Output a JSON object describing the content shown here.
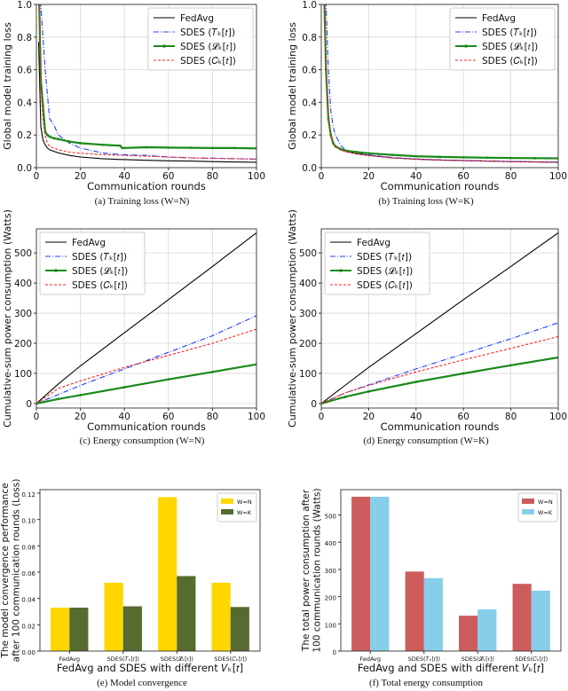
{
  "chart_data": [
    {
      "type": "line",
      "caption": "(a) Training loss (W=N)",
      "xlabel": "Communication rounds",
      "ylabel": "Global model training loss",
      "xlim": [
        0,
        100
      ],
      "ylim": [
        0,
        1.0
      ],
      "xticks": [
        0,
        20,
        40,
        60,
        80,
        100
      ],
      "yticks": [
        0.0,
        0.2,
        0.4,
        0.6,
        0.8,
        1.0
      ],
      "ytick_labels": [
        "0.0",
        "0.2",
        "0.4",
        "0.6",
        "0.8",
        "1.0"
      ],
      "grid": true,
      "legend": "top-right",
      "x": [
        1,
        2,
        3,
        4,
        5,
        6,
        8,
        10,
        15,
        20,
        30,
        38,
        39,
        50,
        60,
        70,
        80,
        90,
        100
      ],
      "series": [
        {
          "name": "FedAvg",
          "color": "#000000",
          "dash": "",
          "values": [
            0.77,
            0.25,
            0.17,
            0.14,
            0.12,
            0.11,
            0.1,
            0.09,
            0.075,
            0.065,
            0.055,
            0.05,
            0.05,
            0.045,
            0.042,
            0.04,
            0.037,
            0.035,
            0.033
          ]
        },
        {
          "name": "SDES (𝑇ₖ[𝑡])",
          "color": "#1f3fff",
          "dash": "6,2,1,2",
          "values": [
            1.2,
            1.0,
            0.8,
            0.6,
            0.45,
            0.3,
            0.26,
            0.2,
            0.15,
            0.12,
            0.09,
            0.08,
            0.08,
            0.075,
            0.065,
            0.06,
            0.058,
            0.055,
            0.052
          ]
        },
        {
          "name": "SDES (𝓛ₖ[𝑡])",
          "color": "#1a8a1a",
          "dash": "",
          "marker": true,
          "values": [
            1.2,
            0.54,
            0.38,
            0.22,
            0.2,
            0.19,
            0.18,
            0.175,
            0.16,
            0.15,
            0.14,
            0.135,
            0.12,
            0.125,
            0.123,
            0.122,
            0.12,
            0.12,
            0.118
          ]
        },
        {
          "name": "SDES (𝐶ₖ[𝑡])",
          "color": "#ff2020",
          "dash": "3,2",
          "values": [
            1.2,
            0.5,
            0.3,
            0.2,
            0.15,
            0.13,
            0.12,
            0.11,
            0.095,
            0.088,
            0.08,
            0.076,
            0.075,
            0.07,
            0.065,
            0.06,
            0.057,
            0.055,
            0.052
          ]
        }
      ]
    },
    {
      "type": "line",
      "caption": "(b) Training loss (W=K)",
      "xlabel": "Communication rounds",
      "ylabel": "Global model training loss",
      "xlim": [
        0,
        100
      ],
      "ylim": [
        0,
        1.0
      ],
      "xticks": [
        0,
        20,
        40,
        60,
        80,
        100
      ],
      "yticks": [
        0.0,
        0.2,
        0.4,
        0.6,
        0.8,
        1.0
      ],
      "ytick_labels": [
        "0.0",
        "0.2",
        "0.4",
        "0.6",
        "0.8",
        "1.0"
      ],
      "grid": true,
      "legend": "top-right",
      "x": [
        1,
        2,
        3,
        4,
        5,
        6,
        8,
        10,
        15,
        20,
        30,
        40,
        50,
        60,
        70,
        80,
        90,
        100
      ],
      "series": [
        {
          "name": "FedAvg",
          "color": "#000000",
          "dash": "",
          "values": [
            1.2,
            0.6,
            0.3,
            0.2,
            0.15,
            0.13,
            0.11,
            0.1,
            0.085,
            0.075,
            0.06,
            0.052,
            0.047,
            0.043,
            0.04,
            0.037,
            0.035,
            0.033
          ]
        },
        {
          "name": "SDES (𝑇ₖ[𝑡])",
          "color": "#1f3fff",
          "dash": "6,2,1,2",
          "values": [
            1.2,
            1.0,
            0.6,
            0.35,
            0.25,
            0.2,
            0.14,
            0.11,
            0.09,
            0.078,
            0.062,
            0.053,
            0.048,
            0.044,
            0.04,
            0.038,
            0.036,
            0.034
          ]
        },
        {
          "name": "SDES (𝓛ₖ[𝑡])",
          "color": "#1a8a1a",
          "dash": "",
          "marker": true,
          "values": [
            1.2,
            0.6,
            0.3,
            0.2,
            0.15,
            0.13,
            0.115,
            0.105,
            0.095,
            0.088,
            0.078,
            0.07,
            0.066,
            0.063,
            0.061,
            0.059,
            0.058,
            0.057
          ]
        },
        {
          "name": "SDES (𝐶ₖ[𝑡])",
          "color": "#ff2020",
          "dash": "3,2",
          "values": [
            1.2,
            0.6,
            0.3,
            0.2,
            0.15,
            0.13,
            0.11,
            0.1,
            0.085,
            0.075,
            0.06,
            0.052,
            0.047,
            0.043,
            0.04,
            0.037,
            0.035,
            0.033
          ]
        }
      ]
    },
    {
      "type": "line",
      "caption": "(c) Energy consumption (W=N)",
      "xlabel": "Communication rounds",
      "ylabel": "Cumulative-sum power consumption (Watts)",
      "xlim": [
        0,
        100
      ],
      "ylim": [
        -15,
        580
      ],
      "xticks": [
        0,
        20,
        40,
        60,
        80,
        100
      ],
      "yticks": [
        0,
        100,
        200,
        300,
        400,
        500
      ],
      "ytick_labels": [
        "0",
        "100",
        "200",
        "300",
        "400",
        "500"
      ],
      "grid": true,
      "legend": "top-left",
      "x": [
        0,
        10,
        20,
        40,
        60,
        80,
        100
      ],
      "series": [
        {
          "name": "FedAvg",
          "color": "#000000",
          "dash": "",
          "values": [
            0,
            65,
            125,
            235,
            345,
            455,
            567
          ]
        },
        {
          "name": "SDES (𝑇ₖ[𝑡])",
          "color": "#1f3fff",
          "dash": "6,2,1,2",
          "values": [
            0,
            30,
            60,
            115,
            170,
            225,
            292
          ]
        },
        {
          "name": "SDES (𝓛ₖ[𝑡])",
          "color": "#1a8a1a",
          "dash": "",
          "marker": true,
          "values": [
            0,
            15,
            28,
            54,
            80,
            105,
            130
          ]
        },
        {
          "name": "SDES (𝐶ₖ[𝑡])",
          "color": "#ff2020",
          "dash": "3,2",
          "values": [
            0,
            50,
            75,
            120,
            160,
            200,
            247
          ]
        }
      ]
    },
    {
      "type": "line",
      "caption": "(d) Energy consumption (W=K)",
      "xlabel": "Communication rounds",
      "ylabel": "Cumulative-sum power consumption (Watts)",
      "xlim": [
        0,
        100
      ],
      "ylim": [
        -15,
        580
      ],
      "xticks": [
        0,
        20,
        40,
        60,
        80,
        100
      ],
      "yticks": [
        0,
        100,
        200,
        300,
        400,
        500
      ],
      "ytick_labels": [
        "0",
        "100",
        "200",
        "300",
        "400",
        "500"
      ],
      "grid": true,
      "legend": "top-left",
      "x": [
        0,
        10,
        20,
        40,
        60,
        80,
        100
      ],
      "series": [
        {
          "name": "FedAvg",
          "color": "#000000",
          "dash": "",
          "values": [
            0,
            60,
            120,
            232,
            345,
            455,
            567
          ]
        },
        {
          "name": "SDES (𝑇ₖ[𝑡])",
          "color": "#1f3fff",
          "dash": "6,2,1,2",
          "values": [
            0,
            35,
            62,
            115,
            165,
            215,
            268
          ]
        },
        {
          "name": "SDES (𝓛ₖ[𝑡])",
          "color": "#1a8a1a",
          "dash": "",
          "marker": true,
          "values": [
            0,
            22,
            40,
            72,
            100,
            127,
            153
          ]
        },
        {
          "name": "SDES (𝐶ₖ[𝑡])",
          "color": "#ff2020",
          "dash": "3,2",
          "values": [
            0,
            35,
            60,
            105,
            145,
            183,
            222
          ]
        }
      ]
    },
    {
      "type": "bar",
      "caption": "(e) Model convergence",
      "xlabel": "FedAvg and SDES with different 𝑉ₖ[𝑡]",
      "ylabel": [
        "The model convergence performance",
        "after 100 communication rounds (Loss)"
      ],
      "categories": [
        "FedAvg",
        "SDES(𝑇ₖ[𝑡])",
        "SDES(𝓛ₖ[𝑡])",
        "SDES(𝐶ₖ[𝑡])"
      ],
      "ylim": [
        0,
        0.1227
      ],
      "yticks": [
        0,
        0.02,
        0.04,
        0.06,
        0.08,
        0.1,
        0.12
      ],
      "ytick_labels": [
        "0.00",
        "0.02",
        "0.04",
        "0.06",
        "0.08",
        "0.10",
        "0.12"
      ],
      "legend": "top-right",
      "series": [
        {
          "name": "W=N",
          "color": "#ffd700",
          "values": [
            0.033,
            0.052,
            0.117,
            0.052
          ]
        },
        {
          "name": "W=K",
          "color": "#556b2f",
          "values": [
            0.033,
            0.034,
            0.057,
            0.0335
          ]
        }
      ]
    },
    {
      "type": "bar",
      "caption": "(f) Total energy consumption",
      "xlabel": "FedAvg and SDES with different 𝑉ₖ[𝑡]",
      "ylabel": [
        "The total power consumption after",
        "100 communication rounds (Watts)"
      ],
      "categories": [
        "FedAvg",
        "SDES(𝑇ₖ[𝑡])",
        "SDES(𝓛ₖ[𝑡])",
        "SDES(𝐶ₖ[𝑡])"
      ],
      "ylim": [
        0,
        593
      ],
      "yticks": [
        0,
        100,
        200,
        300,
        400,
        500
      ],
      "ytick_labels": [
        "0",
        "100",
        "200",
        "300",
        "400",
        "500"
      ],
      "legend": "top-right",
      "series": [
        {
          "name": "W=N",
          "color": "#cd5c5c",
          "values": [
            567,
            292,
            130,
            247
          ]
        },
        {
          "name": "W=K",
          "color": "#87ceeb",
          "values": [
            567,
            268,
            153,
            222
          ]
        }
      ]
    }
  ]
}
